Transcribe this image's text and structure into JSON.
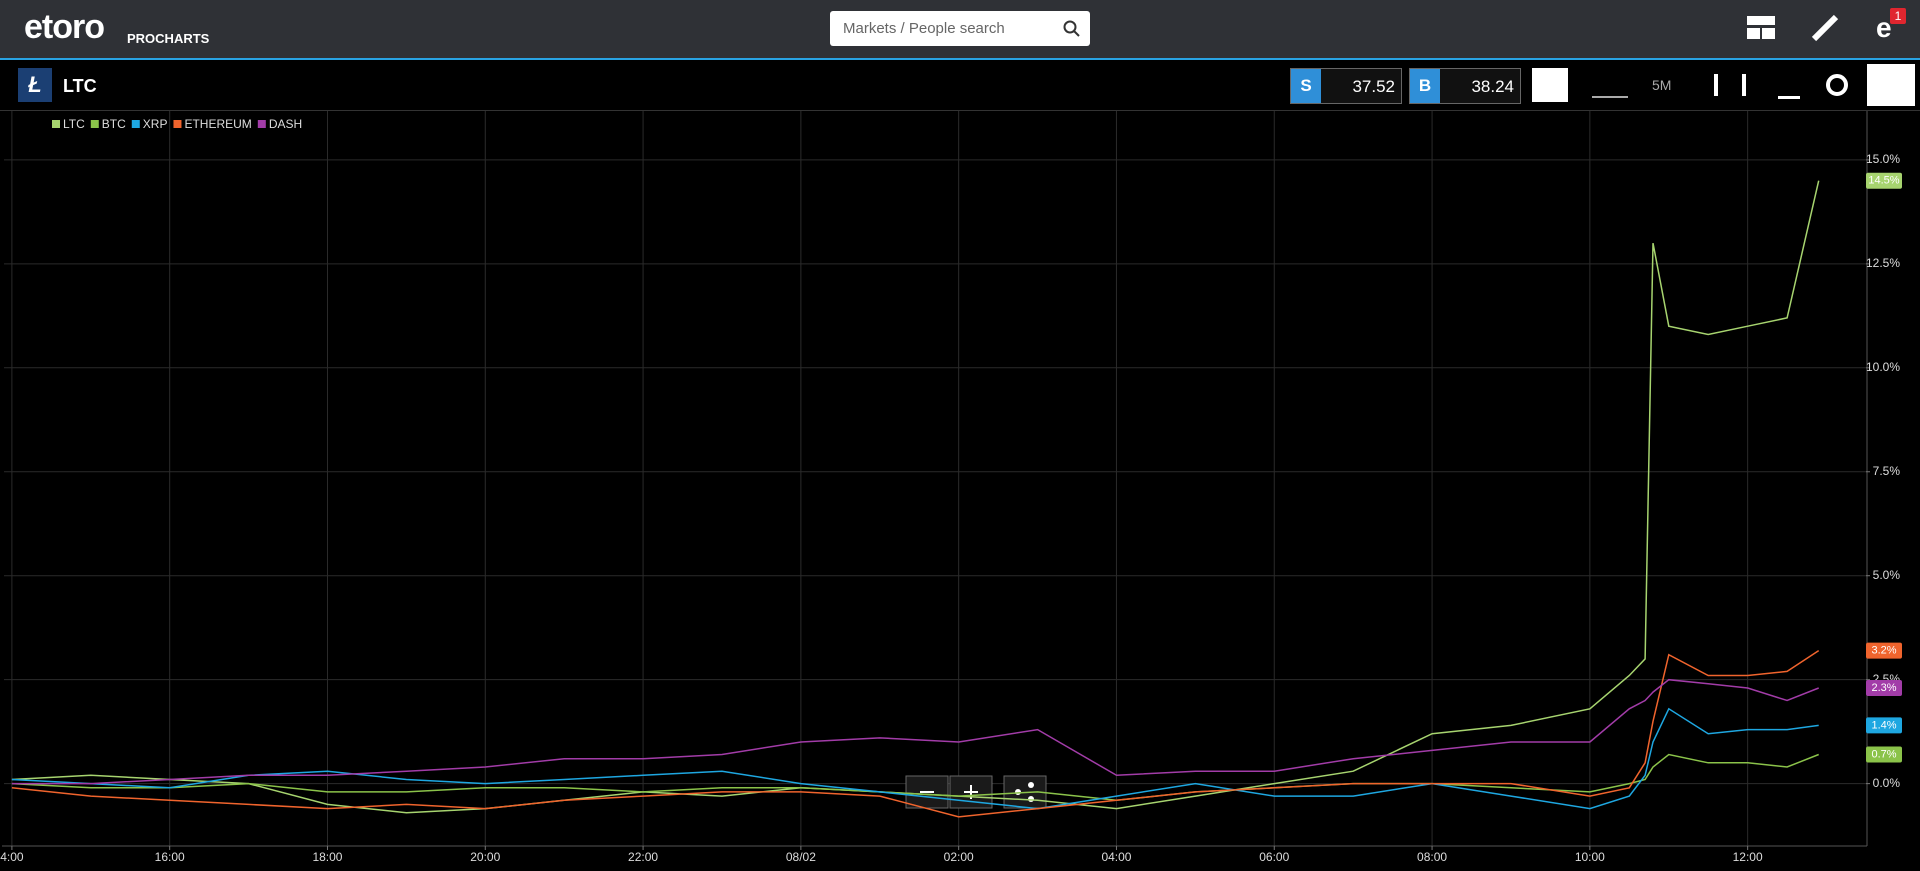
{
  "header": {
    "logo": "etoro",
    "brand": "PROCHARTS",
    "search_placeholder": "Markets / People search",
    "notifications": "1"
  },
  "toolbar": {
    "symbol": "LTC",
    "sell_label": "S",
    "sell": "37.52",
    "buy_label": "B",
    "buy": "38.24",
    "timeframe": "5M"
  },
  "chart_data": {
    "type": "line",
    "x": [
      0,
      1,
      2,
      3,
      4,
      5,
      6,
      7,
      8,
      9,
      10,
      11,
      12,
      13,
      14,
      15,
      16,
      17,
      18,
      19,
      20,
      20.5,
      20.7,
      20.8,
      21,
      21.5,
      22,
      22.5,
      22.9
    ],
    "xlim": [
      -0.1,
      23.5
    ],
    "xticks": [
      {
        "value": 0,
        "label": "4:00"
      },
      {
        "value": 2,
        "label": "16:00"
      },
      {
        "value": 4,
        "label": "18:00"
      },
      {
        "value": 6,
        "label": "20:00"
      },
      {
        "value": 8,
        "label": "22:00"
      },
      {
        "value": 10,
        "label": "08/02"
      },
      {
        "value": 12,
        "label": "02:00"
      },
      {
        "value": 14,
        "label": "04:00"
      },
      {
        "value": 16,
        "label": "06:00"
      },
      {
        "value": 18,
        "label": "08:00"
      },
      {
        "value": 20,
        "label": "10:00"
      },
      {
        "value": 22,
        "label": "12:00"
      }
    ],
    "ylim": [
      -1.5,
      16.2
    ],
    "yticks": [
      {
        "value": 0,
        "label": "0.0%"
      },
      {
        "value": 2.5,
        "label": "2.5%"
      },
      {
        "value": 5,
        "label": "5.0%"
      },
      {
        "value": 7.5,
        "label": "7.5%"
      },
      {
        "value": 10,
        "label": "10.0%"
      },
      {
        "value": 12.5,
        "label": "12.5%"
      },
      {
        "value": 15,
        "label": "15.0%"
      }
    ],
    "grid": true,
    "series": [
      {
        "name": "LTC",
        "color": "#a7d46f",
        "values": [
          0.1,
          0.2,
          0.1,
          0.0,
          -0.5,
          -0.7,
          -0.6,
          -0.4,
          -0.2,
          -0.3,
          -0.1,
          -0.2,
          -0.3,
          -0.4,
          -0.6,
          -0.3,
          0.0,
          0.3,
          1.2,
          1.4,
          1.8,
          2.6,
          3.0,
          13.0,
          11.0,
          10.8,
          11.0,
          11.2,
          14.5
        ],
        "value_labels": [
          null,
          null,
          null,
          null,
          null,
          null,
          null,
          null,
          null,
          null,
          null,
          null,
          null,
          null,
          null,
          null,
          null,
          null,
          null,
          null,
          null,
          null,
          null,
          null,
          null,
          null,
          null,
          null,
          "14.5%"
        ]
      },
      {
        "name": "BTC",
        "color": "#8bc34a",
        "values": [
          0.0,
          -0.1,
          -0.1,
          0.0,
          -0.2,
          -0.2,
          -0.1,
          -0.1,
          -0.2,
          -0.1,
          -0.1,
          -0.2,
          -0.3,
          -0.2,
          -0.4,
          -0.2,
          -0.1,
          0.0,
          0.0,
          -0.1,
          -0.2,
          0.0,
          0.1,
          0.4,
          0.7,
          0.5,
          0.5,
          0.4,
          0.7
        ],
        "value_labels": [
          null,
          null,
          null,
          null,
          null,
          null,
          null,
          null,
          null,
          null,
          null,
          null,
          null,
          null,
          null,
          null,
          null,
          null,
          null,
          null,
          null,
          null,
          null,
          null,
          null,
          null,
          null,
          null,
          "0.7%"
        ]
      },
      {
        "name": "XRP",
        "color": "#1ea7e1",
        "values": [
          0.1,
          0.0,
          -0.1,
          0.2,
          0.3,
          0.1,
          0.0,
          0.1,
          0.2,
          0.3,
          0.0,
          -0.2,
          -0.4,
          -0.6,
          -0.3,
          0.0,
          -0.3,
          -0.3,
          0.0,
          -0.3,
          -0.6,
          -0.3,
          0.2,
          1.0,
          1.8,
          1.2,
          1.3,
          1.3,
          1.4
        ],
        "value_labels": [
          null,
          null,
          null,
          null,
          null,
          null,
          null,
          null,
          null,
          null,
          null,
          null,
          null,
          null,
          null,
          null,
          null,
          null,
          null,
          null,
          null,
          null,
          null,
          null,
          null,
          null,
          null,
          null,
          "1.4%"
        ]
      },
      {
        "name": "ETHEREUM",
        "color": "#f0642d",
        "values": [
          -0.1,
          -0.3,
          -0.4,
          -0.5,
          -0.6,
          -0.5,
          -0.6,
          -0.4,
          -0.3,
          -0.2,
          -0.2,
          -0.3,
          -0.8,
          -0.6,
          -0.4,
          -0.2,
          -0.1,
          0.0,
          0.0,
          0.0,
          -0.3,
          -0.1,
          0.5,
          1.5,
          3.1,
          2.6,
          2.6,
          2.7,
          3.2
        ],
        "value_labels": [
          null,
          null,
          null,
          null,
          null,
          null,
          null,
          null,
          null,
          null,
          null,
          null,
          null,
          null,
          null,
          null,
          null,
          null,
          null,
          null,
          null,
          null,
          null,
          null,
          null,
          null,
          null,
          null,
          "3.2%"
        ]
      },
      {
        "name": "DASH",
        "color": "#a23ca8",
        "values": [
          0.0,
          0.0,
          0.1,
          0.2,
          0.2,
          0.3,
          0.4,
          0.6,
          0.6,
          0.7,
          1.0,
          1.1,
          1.0,
          1.3,
          0.2,
          0.3,
          0.3,
          0.6,
          0.8,
          1.0,
          1.0,
          1.8,
          2.0,
          2.2,
          2.5,
          2.4,
          2.3,
          2.0,
          2.3
        ],
        "value_labels": [
          null,
          null,
          null,
          null,
          null,
          null,
          null,
          null,
          null,
          null,
          null,
          null,
          null,
          null,
          null,
          null,
          null,
          null,
          null,
          null,
          null,
          null,
          null,
          null,
          null,
          null,
          null,
          null,
          "2.3%"
        ]
      }
    ]
  }
}
